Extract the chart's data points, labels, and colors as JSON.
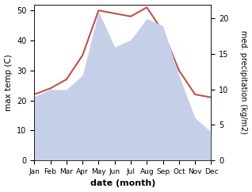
{
  "months": [
    "Jan",
    "Feb",
    "Mar",
    "Apr",
    "May",
    "Jun",
    "Jul",
    "Aug",
    "Sep",
    "Oct",
    "Nov",
    "Dec"
  ],
  "temp": [
    22,
    24,
    27,
    35,
    50,
    49,
    48,
    51,
    43,
    30,
    22,
    21
  ],
  "precip": [
    9,
    10,
    10,
    12,
    21,
    16,
    17,
    20,
    19,
    12,
    6,
    4
  ],
  "temp_color": "#c0504d",
  "precip_fill_color": "#c5d0e8",
  "ylim_temp": [
    0,
    52
  ],
  "ylim_precip": [
    0,
    22
  ],
  "yticks_temp": [
    0,
    10,
    20,
    30,
    40,
    50
  ],
  "yticks_precip": [
    0,
    5,
    10,
    15,
    20
  ],
  "xlabel": "date (month)",
  "ylabel_left": "max temp (C)",
  "ylabel_right": "med. precipitation (kg/m2)",
  "bg_color": "#ffffff"
}
